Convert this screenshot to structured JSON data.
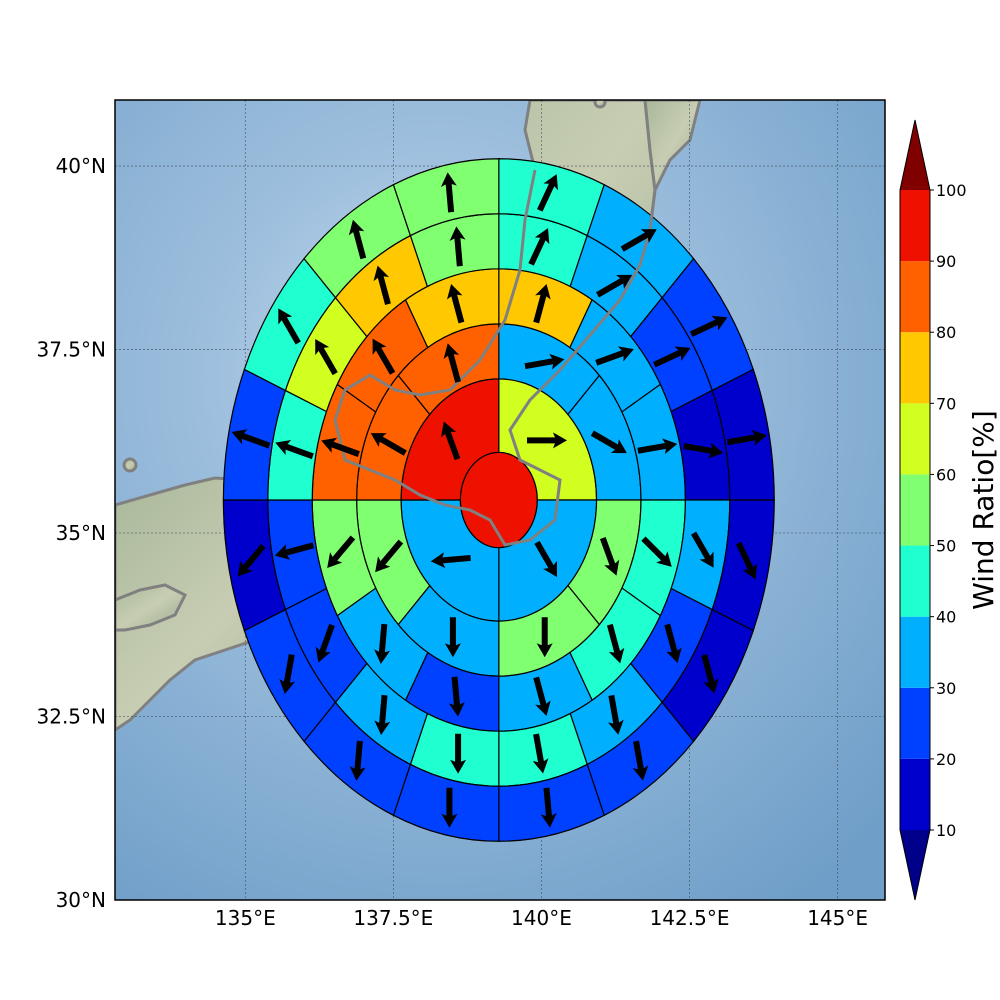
{
  "chart_data": {
    "type": "polar-grid-map",
    "title": "",
    "axes": {
      "lon_range": [
        132.8,
        145.8
      ],
      "lat_range": [
        30.0,
        40.9
      ],
      "x_ticks": [
        135,
        137.5,
        140,
        142.5,
        145
      ],
      "y_ticks": [
        30,
        32.5,
        35,
        37.5,
        40
      ],
      "x_tick_labels": [
        "135°E",
        "137.5°E",
        "140°E",
        "142.5°E",
        "145°E"
      ],
      "y_tick_labels": [
        "30°N",
        "32.5°N",
        "35°N",
        "37.5°N",
        "40°N"
      ],
      "grid": true
    },
    "center": {
      "lon": 139.28,
      "lat": 35.45
    },
    "ring_radii_deg": [
      0.65,
      1.65,
      2.4,
      3.15,
      3.9,
      4.65
    ],
    "sector_start_deg_from_north_clockwise": 0,
    "sectors_per_ring": [
      1,
      4,
      8,
      12,
      16,
      16
    ],
    "rings": [
      {
        "ring": 0,
        "ratios": [
          95
        ]
      },
      {
        "ring": 1,
        "ratios": [
          62,
          35,
          38,
          95
        ]
      },
      {
        "ring": 2,
        "ratios": [
          35,
          35,
          55,
          50,
          35,
          52,
          85,
          85
        ]
      },
      {
        "ring": 3,
        "ratios": [
          75,
          35,
          35,
          45,
          45,
          35,
          25,
          35,
          52,
          85,
          85,
          75
        ]
      },
      {
        "ring": 4,
        "ratios": [
          45,
          35,
          25,
          15,
          35,
          25,
          35,
          45,
          45,
          35,
          25,
          25,
          45,
          65,
          75,
          55
        ]
      },
      {
        "ring": 5,
        "ratios": [
          45,
          35,
          25,
          15,
          15,
          15,
          25,
          25,
          25,
          25,
          25,
          15,
          25,
          45,
          55,
          55
        ]
      }
    ],
    "wind_arrows_deg_from_north": [
      {
        "ring": 1,
        "directions": [
          90,
          150,
          265,
          340
        ]
      },
      {
        "ring": 2,
        "directions": [
          80,
          120,
          160,
          180,
          180,
          220,
          300,
          345
        ]
      },
      {
        "ring": 3,
        "directions": [
          15,
          70,
          80,
          135,
          165,
          165,
          175,
          185,
          220,
          290,
          330,
          345
        ]
      },
      {
        "ring": 4,
        "directions": [
          25,
          60,
          65,
          100,
          150,
          165,
          170,
          170,
          180,
          185,
          200,
          255,
          290,
          330,
          345,
          355
        ]
      },
      {
        "ring": 5,
        "directions": [
          25,
          60,
          65,
          80,
          155,
          165,
          170,
          175,
          180,
          185,
          190,
          220,
          290,
          330,
          345,
          355
        ]
      }
    ],
    "colorbar": {
      "label": "Wind Ratio[%]",
      "ticks": [
        10,
        20,
        30,
        40,
        50,
        60,
        70,
        80,
        90,
        100
      ],
      "levels": [
        10,
        20,
        30,
        40,
        50,
        60,
        70,
        80,
        90,
        100
      ],
      "colors": [
        "#0000cc",
        "#0040ff",
        "#00b0ff",
        "#20ffd0",
        "#80ff70",
        "#d0ff20",
        "#ffc800",
        "#ff6000",
        "#ee1100"
      ],
      "under_color": "#00008b",
      "over_color": "#800000"
    }
  }
}
